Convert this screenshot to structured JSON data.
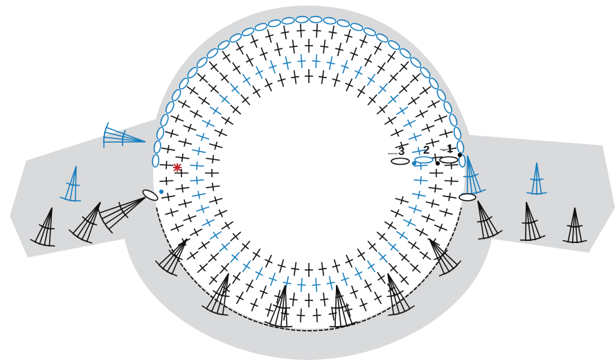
{
  "diagram": {
    "type": "crochet-stitch-chart",
    "colors": {
      "background": "#ffffff",
      "shape": "#d9dadc",
      "black_stitch": "#111111",
      "blue_stitch": "#1b7fbf",
      "grey_stitch": "#9a9a9a",
      "start_mark": "#c0282d"
    },
    "round_markers": [
      {
        "label": "1"
      },
      {
        "label": "2"
      },
      {
        "label": "3"
      }
    ],
    "symbols": [
      "single-crochet-cross",
      "double-crochet",
      "chain-oval",
      "slip-stitch-dot",
      "start-asterisk"
    ]
  }
}
